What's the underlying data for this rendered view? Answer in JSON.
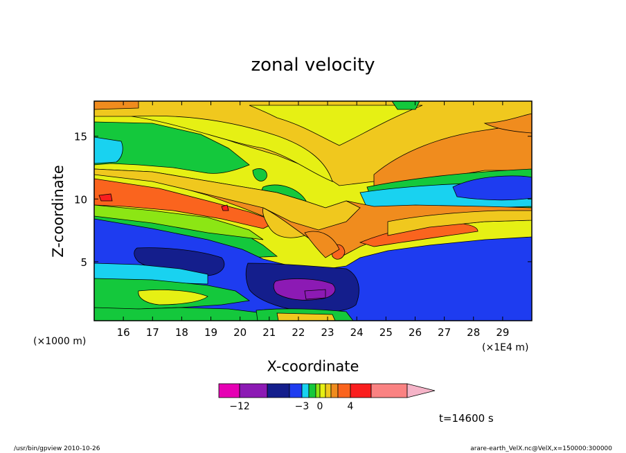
{
  "chart_data": {
    "type": "heatmap",
    "title": "zonal velocity",
    "xlabel": "X-coordinate",
    "ylabel": "Z-coordinate",
    "x_scale_note": "(×1E4 m)",
    "y_scale_note": "(×1000 m)",
    "x_ticks": [
      "16",
      "17",
      "18",
      "19",
      "20",
      "21",
      "22",
      "23",
      "24",
      "25",
      "26",
      "27",
      "28",
      "29"
    ],
    "y_ticks": [
      "5",
      "10",
      "15"
    ],
    "xlim": [
      15.0,
      30.0
    ],
    "ylim": [
      0.3,
      17.8
    ],
    "colorbar": {
      "colors": [
        "#e600b4",
        "#8c1ab4",
        "#141e8c",
        "#1e3cf0",
        "#19d2f0",
        "#14c83c",
        "#8ce614",
        "#e6f014",
        "#f0c81e",
        "#f08c1e",
        "#fa641e",
        "#fa1e1e",
        "#fa8282",
        "#f5b4c8"
      ],
      "tick_labels": [
        "−12",
        "−3",
        "0",
        "4"
      ]
    },
    "time_label": "t=14600 s",
    "footer_left": "/usr/bin/gpview  2010-10-26",
    "footer_right": "arare-earth_VelX.nc@VelX,x=150000:300000"
  },
  "colors": {
    "magenta": "#e600b4",
    "purple": "#8c1ab4",
    "navy": "#141e8c",
    "blue": "#1e3cf0",
    "cyan": "#19d2f0",
    "green": "#14c83c",
    "lightgreen": "#8ce614",
    "yellow": "#e6f014",
    "gold": "#f0c81e",
    "orange": "#f08c1e",
    "deeporange": "#fa641e",
    "red": "#fa1e1e",
    "pink": "#fa8282"
  }
}
